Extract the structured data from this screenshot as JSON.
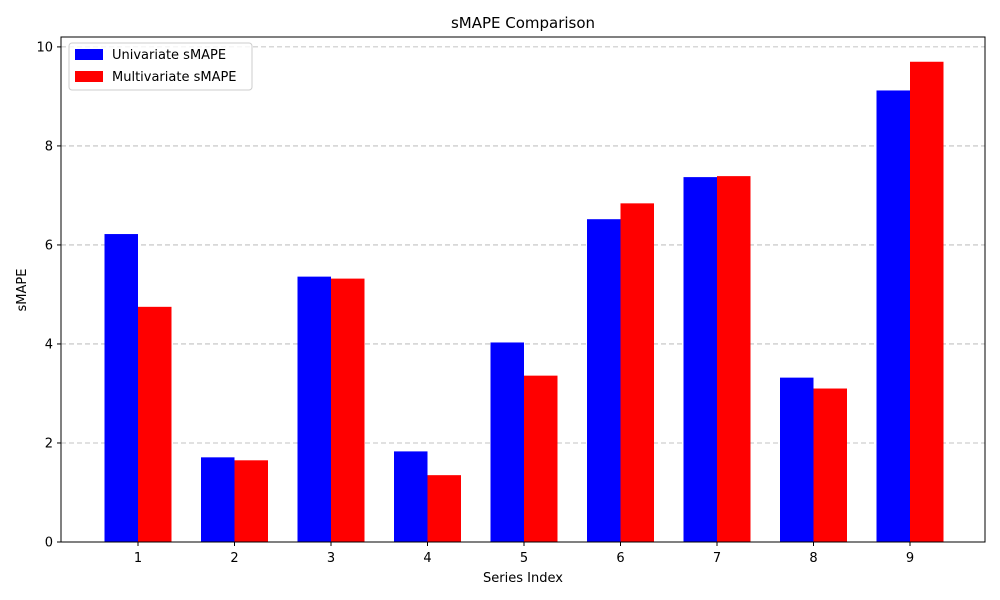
{
  "chart_data": {
    "type": "bar",
    "title": "sMAPE Comparison",
    "xlabel": "Series Index",
    "ylabel": "sMAPE",
    "categories": [
      "1",
      "2",
      "3",
      "4",
      "5",
      "6",
      "7",
      "8",
      "9"
    ],
    "series": [
      {
        "name": "Univariate sMAPE",
        "color": "#0000ff",
        "values": [
          6.22,
          1.71,
          5.36,
          1.83,
          4.03,
          6.52,
          7.37,
          3.32,
          9.12
        ]
      },
      {
        "name": "Multivariate sMAPE",
        "color": "#ff0000",
        "values": [
          4.75,
          1.65,
          5.32,
          1.35,
          3.36,
          6.84,
          7.39,
          3.1,
          9.7
        ]
      }
    ],
    "ylim": [
      0,
      10.2
    ],
    "yticks": [
      "0",
      "2",
      "4",
      "6",
      "8",
      "10"
    ],
    "grid": "y-dashed",
    "legend_position": "top-left"
  }
}
